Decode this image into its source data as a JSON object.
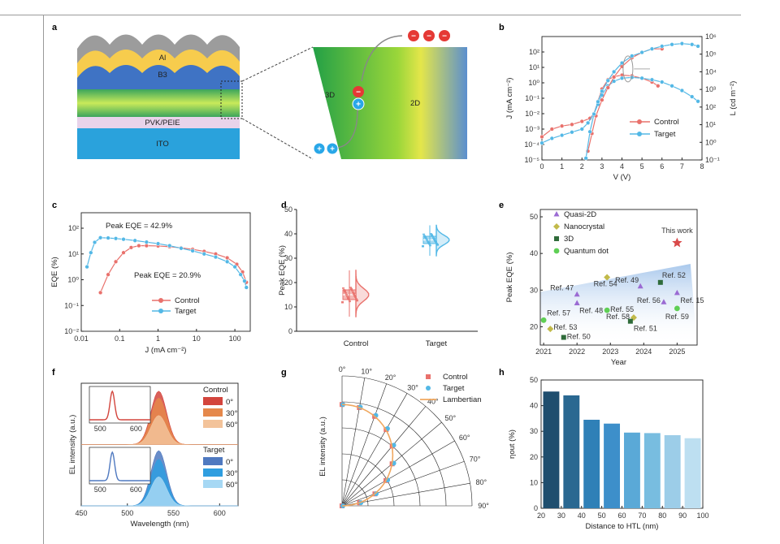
{
  "panels": {
    "a": {
      "label": "a",
      "layers": [
        "Al",
        "B3",
        "PVK/PEIE",
        "ITO"
      ],
      "zoom_left": "3D",
      "zoom_right": "2D",
      "hole": "+",
      "electron": "−",
      "colors": {
        "al": "#9c9c9c",
        "b3": "#f7cc4d",
        "blue": "#3f73c4",
        "pvk": "#e8d3ea",
        "ito": "#2aa2dc",
        "green": "#2fa84f",
        "carrier_red": "#e53935",
        "carrier_blue": "#29a7e8"
      }
    },
    "b": {
      "label": "b"
    },
    "c": {
      "label": "c"
    },
    "d": {
      "label": "d"
    },
    "e": {
      "label": "e"
    },
    "f": {
      "label": "f"
    },
    "g": {
      "label": "g"
    },
    "h": {
      "label": "h"
    }
  },
  "chart_data": [
    {
      "panel": "b",
      "type": "line",
      "xlabel": "V (V)",
      "ylabel_left": "J (mA cm⁻²)",
      "ylabel_right": "L (cd m⁻²)",
      "xlim": [
        0,
        8
      ],
      "xticks": [
        "0",
        "1",
        "2",
        "3",
        "4",
        "5",
        "6",
        "7",
        "8"
      ],
      "ylim_left_log10": [
        -5,
        3
      ],
      "yticks_left": [
        "10⁻⁵",
        "10⁻⁴",
        "10⁻³",
        "10⁻²",
        "10⁻¹",
        "10⁰",
        "10¹",
        "10²"
      ],
      "ylim_right_log10": [
        -1,
        6
      ],
      "yticks_right": [
        "10⁻¹",
        "10⁰",
        "10¹",
        "10²",
        "10³",
        "10⁴",
        "10⁵",
        "10⁶"
      ],
      "legend": [
        "Control",
        "Target"
      ],
      "legend_position": "right-middle",
      "series": [
        {
          "name": "Control",
          "axis": "left",
          "color": "#e9716c",
          "x": [
            0,
            0.5,
            1,
            1.5,
            2,
            2.4,
            2.6,
            2.8,
            3,
            3.3,
            3.6,
            4,
            4.5,
            5,
            5.5,
            5.8
          ],
          "y": [
            -3.5,
            -3,
            -2.8,
            -2.7,
            -2.5,
            -2.3,
            -2,
            -1.2,
            -0.4,
            0.2,
            0.4,
            0.5,
            0.45,
            0.3,
            0.05,
            -0.2
          ]
        },
        {
          "name": "Target",
          "axis": "left",
          "color": "#53b8e6",
          "x": [
            0,
            0.5,
            1,
            1.5,
            2,
            2.3,
            2.6,
            2.8,
            3,
            3.3,
            3.6,
            4,
            4.5,
            5,
            5.5,
            6,
            6.5,
            7,
            7.5,
            7.8
          ],
          "y": [
            -3.9,
            -3.6,
            -3.4,
            -3.2,
            -3,
            -2.6,
            -2,
            -1.4,
            -0.8,
            -0.2,
            0.1,
            0.3,
            0.35,
            0.3,
            0.2,
            0.05,
            -0.2,
            -0.5,
            -0.9,
            -1.2
          ]
        },
        {
          "name": "Control",
          "axis": "right",
          "color": "#e9716c",
          "x": [
            2.3,
            2.5,
            2.7,
            3,
            3.3,
            3.6,
            4,
            4.5,
            5,
            5.5,
            6
          ],
          "y": [
            -0.5,
            0.5,
            1.5,
            2.4,
            3.1,
            3.7,
            4.3,
            4.8,
            5.1,
            5.3,
            5.3
          ]
        },
        {
          "name": "Target",
          "axis": "right",
          "color": "#53b8e6",
          "x": [
            2.2,
            2.4,
            2.6,
            2.8,
            3,
            3.3,
            3.6,
            4,
            4.5,
            5,
            5.5,
            6,
            6.5,
            7,
            7.5,
            7.8
          ],
          "y": [
            -0.9,
            0.6,
            1.6,
            2.3,
            2.9,
            3.5,
            4,
            4.5,
            4.9,
            5.1,
            5.3,
            5.45,
            5.55,
            5.6,
            5.55,
            5.45
          ]
        }
      ]
    },
    {
      "panel": "c",
      "type": "line",
      "xlabel": "J (mA cm⁻²)",
      "ylabel": "EQE (%)",
      "xlim_log10": [
        -2,
        2.4
      ],
      "xticks": [
        "0.01",
        "0.1",
        "1",
        "10",
        "100"
      ],
      "ylim_log10": [
        -2,
        2.6
      ],
      "yticks": [
        "10⁻²",
        "10⁻¹",
        "10⁰",
        "10¹",
        "10²"
      ],
      "annotations": [
        "Peak EQE = 42.9%",
        "Peak EQE = 20.9%"
      ],
      "legend": [
        "Control",
        "Target"
      ],
      "legend_position": "bottom-middle",
      "series": [
        {
          "name": "Control",
          "color": "#e9716c",
          "x_log10": [
            -1.5,
            -1.3,
            -1.1,
            -0.9,
            -0.7,
            -0.5,
            -0.3,
            0,
            0.3,
            0.6,
            0.9,
            1.2,
            1.5,
            1.8,
            2.05,
            2.2,
            2.3
          ],
          "y_log10": [
            -0.5,
            0.2,
            0.7,
            1.05,
            1.25,
            1.32,
            1.32,
            1.31,
            1.28,
            1.24,
            1.18,
            1.1,
            1.0,
            0.85,
            0.6,
            0.3,
            -0.1
          ]
        },
        {
          "name": "Target",
          "color": "#53b8e6",
          "x_log10": [
            -1.85,
            -1.75,
            -1.65,
            -1.5,
            -1.3,
            -1.1,
            -0.9,
            -0.6,
            -0.3,
            0,
            0.3,
            0.6,
            0.9,
            1.2,
            1.5,
            1.8,
            2.0,
            2.15,
            2.25,
            2.3
          ],
          "y_log10": [
            0.5,
            1.05,
            1.45,
            1.63,
            1.62,
            1.6,
            1.57,
            1.52,
            1.46,
            1.4,
            1.32,
            1.22,
            1.12,
            1.0,
            0.88,
            0.7,
            0.5,
            0.2,
            -0.05,
            -0.3
          ]
        }
      ]
    },
    {
      "panel": "d",
      "type": "scatter",
      "ylabel": "Peak EQE (%)",
      "categories": [
        "Control",
        "Target"
      ],
      "ylim": [
        0,
        50
      ],
      "yticks": [
        "0",
        "10",
        "20",
        "30",
        "40",
        "50"
      ],
      "series": [
        {
          "name": "Control",
          "color": "#e9716c",
          "median": 15,
          "q1": 13,
          "q3": 17,
          "min": 6,
          "max": 25
        },
        {
          "name": "Target",
          "color": "#53b8e6",
          "median": 37.5,
          "q1": 36,
          "q3": 39,
          "min": 31,
          "max": 43.5
        }
      ]
    },
    {
      "panel": "e",
      "type": "scatter",
      "xlabel": "Year",
      "ylabel": "Peak EQE (%)",
      "xlim": [
        2020.9,
        2025.6
      ],
      "xticks": [
        "2021",
        "2022",
        "2023",
        "2024",
        "2025"
      ],
      "ylim": [
        15,
        52
      ],
      "yticks": [
        "20",
        "30",
        "40",
        "50"
      ],
      "legend": [
        "Quasi-2D",
        "Nanocrystal",
        "3D",
        "Quantum dot"
      ],
      "legend_position": "top-left",
      "star_label": "This work",
      "colors": {
        "Quasi-2D": "#9b6bd3",
        "Nanocrystal": "#c2ba4a",
        "3D": "#2f6b3a",
        "Quantum dot": "#5fcf55",
        "This work": "#d94a4a",
        "band": "#c2d8ef"
      },
      "points": [
        {
          "type": "Quasi-2D",
          "x": 2022.0,
          "y": 28.8,
          "label": "Ref. 47"
        },
        {
          "type": "Quasi-2D",
          "x": 2022.0,
          "y": 26.4,
          "label": "Ref. 48"
        },
        {
          "type": "Quasi-2D",
          "x": 2023.9,
          "y": 31.0,
          "label": "Ref. 49"
        },
        {
          "type": "Quasi-2D",
          "x": 2024.6,
          "y": 26.7,
          "label": "Ref. 56"
        },
        {
          "type": "Quasi-2D",
          "x": 2025.0,
          "y": 29.2,
          "label": "Ref. 15"
        },
        {
          "type": "Nanocrystal",
          "x": 2022.9,
          "y": 33.5,
          "label": "Ref. 54"
        },
        {
          "type": "Nanocrystal",
          "x": 2021.2,
          "y": 19.4,
          "label": "Ref. 53"
        },
        {
          "type": "Nanocrystal",
          "x": 2023.7,
          "y": 22.5,
          "label": "Ref. 58"
        },
        {
          "type": "3D",
          "x": 2021.6,
          "y": 17.1,
          "label": "Ref. 50"
        },
        {
          "type": "3D",
          "x": 2023.6,
          "y": 21.5,
          "label": "Ref. 51"
        },
        {
          "type": "3D",
          "x": 2024.5,
          "y": 32.1,
          "label": "Ref. 52"
        },
        {
          "type": "Quantum dot",
          "x": 2021.0,
          "y": 21.8,
          "label": "Ref. 57"
        },
        {
          "type": "Quantum dot",
          "x": 2022.9,
          "y": 24.5,
          "label": "Ref. 55"
        },
        {
          "type": "Quantum dot",
          "x": 2025.0,
          "y": 25.0,
          "label": "Ref. 59"
        },
        {
          "type": "This work",
          "x": 2025.0,
          "y": 42.9,
          "label": ""
        }
      ]
    },
    {
      "panel": "f",
      "type": "area",
      "xlabel": "Wavelength (nm)",
      "ylabel": "EL intensity (a.u.)",
      "xlim": [
        450,
        620
      ],
      "xticks": [
        "450",
        "500",
        "550",
        "600"
      ],
      "inset_xticks": [
        "500",
        "600"
      ],
      "peak_nm": 534,
      "legend_titles": [
        "Control",
        "Target"
      ],
      "series": [
        {
          "name": "0°",
          "group": "Control",
          "color": "#d3453d",
          "amplitude": 0.92
        },
        {
          "name": "30°",
          "group": "Control",
          "color": "#e5884b",
          "amplitude": 0.8
        },
        {
          "name": "60°",
          "group": "Control",
          "color": "#f3c39a",
          "amplitude": 0.5
        },
        {
          "name": "0°",
          "group": "Target",
          "color": "#4f79c0",
          "amplitude": 0.95
        },
        {
          "name": "30°",
          "group": "Target",
          "color": "#2f9ee0",
          "amplitude": 0.8
        },
        {
          "name": "60°",
          "group": "Target",
          "color": "#a6d8f4",
          "amplitude": 0.5
        }
      ]
    },
    {
      "panel": "g",
      "type": "scatter",
      "ylabel": "EL intensity (a.u.)",
      "angle_ticks": [
        "0°",
        "10°",
        "20°",
        "30°",
        "40°",
        "50°",
        "60°",
        "70°",
        "80°",
        "90°"
      ],
      "legend": [
        "Control",
        "Target",
        "Lambertian"
      ],
      "legend_position": "top-right",
      "angles_deg": [
        0,
        10,
        20,
        30,
        40,
        50,
        60,
        70,
        80,
        90
      ],
      "series": [
        {
          "name": "Control",
          "color": "#e9716c",
          "values": [
            1.0,
            0.985,
            0.94,
            0.87,
            0.77,
            0.645,
            0.5,
            0.345,
            0.175,
            0.0
          ]
        },
        {
          "name": "Target",
          "color": "#53b8e6",
          "values": [
            1.0,
            0.99,
            0.95,
            0.88,
            0.78,
            0.655,
            0.51,
            0.35,
            0.18,
            0.0
          ]
        },
        {
          "name": "Lambertian",
          "color": "#f0a860",
          "values": [
            1.0,
            0.985,
            0.94,
            0.866,
            0.766,
            0.643,
            0.5,
            0.342,
            0.174,
            0.0
          ]
        }
      ]
    },
    {
      "panel": "h",
      "type": "bar",
      "xlabel": "Distance to HTL (nm)",
      "ylabel": "ηout (%)",
      "xlim": [
        20,
        100
      ],
      "xticks": [
        "20",
        "30",
        "40",
        "50",
        "60",
        "70",
        "80",
        "90",
        "100"
      ],
      "ylim": [
        0,
        50
      ],
      "yticks": [
        "0",
        "10",
        "20",
        "30",
        "40",
        "50"
      ],
      "x": [
        25,
        35,
        45,
        55,
        65,
        75,
        85,
        95
      ],
      "values": [
        45.5,
        44,
        34.5,
        33,
        29.5,
        29.3,
        28.5,
        27.3
      ],
      "colors": [
        "#1f4e6e",
        "#2a6891",
        "#2f80b7",
        "#3d8fca",
        "#5aa9d7",
        "#78bde0",
        "#9ccde8",
        "#bddff1"
      ]
    }
  ]
}
